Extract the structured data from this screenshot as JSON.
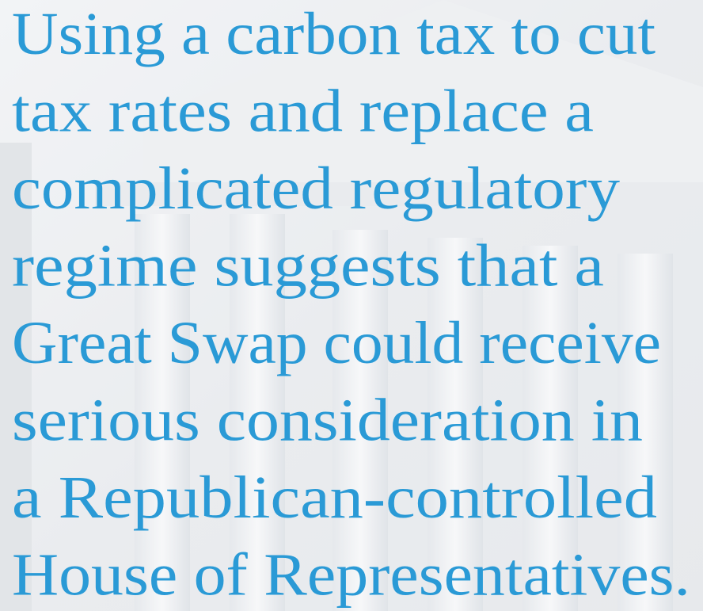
{
  "quote": {
    "lines": [
      "Using a carbon tax to cut",
      "tax rates and replace a",
      "complicated regulatory",
      "regime suggests that a",
      "Great Swap could receive",
      "serious consideration in",
      "a Republican-controlled",
      "House of Representatives."
    ]
  }
}
